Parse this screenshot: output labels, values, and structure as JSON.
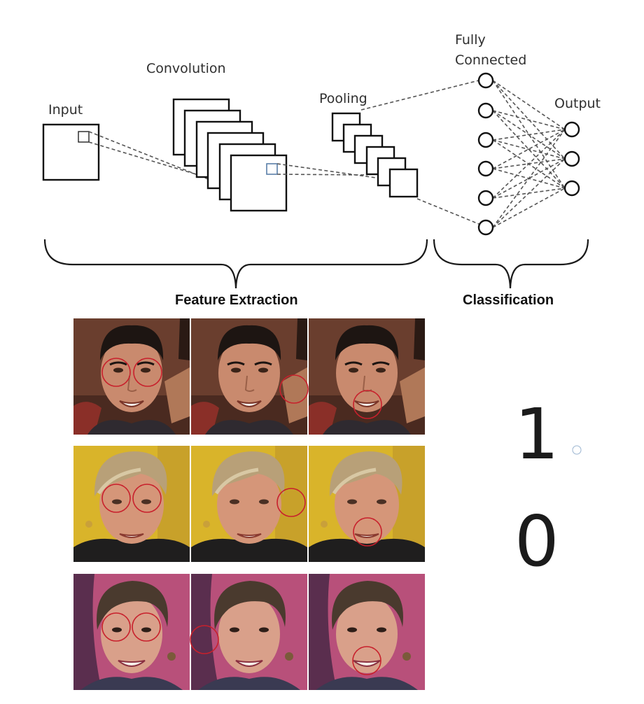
{
  "diagram": {
    "labels": {
      "input": "Input",
      "convolution": "Convolution",
      "pooling": "Pooling",
      "fully_connected_line1": "Fully",
      "fully_connected_line2": "Connected",
      "output": "Output"
    },
    "groups": {
      "feature_extraction": "Feature Extraction",
      "classification": "Classification"
    }
  },
  "examples": {
    "rows": [
      {
        "subject": "man with dark hair",
        "background": "brown room",
        "highlight_regions": [
          "eyes",
          "cheek",
          "mouth"
        ]
      },
      {
        "subject": "woman with short blonde hair",
        "background": "yellow",
        "highlight_regions": [
          "eyes",
          "cheek",
          "mouth"
        ]
      },
      {
        "subject": "woman with short brown hair",
        "background": "pink",
        "highlight_regions": [
          "eyes",
          "cheek",
          "mouth"
        ]
      }
    ],
    "predictions": [
      "1",
      "0"
    ]
  },
  "colors": {
    "highlight_circle": "#c8202c",
    "connection_lines": "#555555",
    "feature_box_marker": "#5a7fa8"
  }
}
